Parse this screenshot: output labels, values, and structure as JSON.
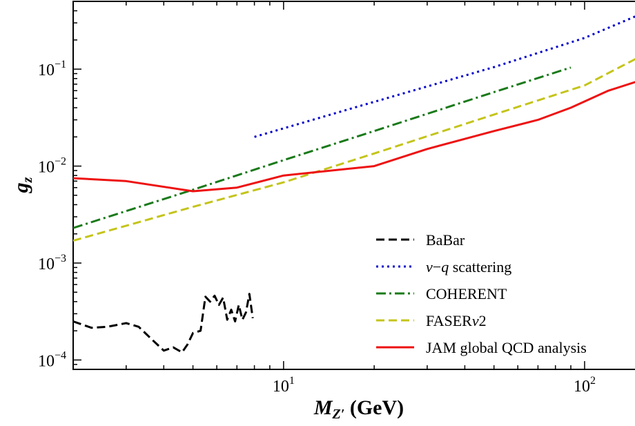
{
  "chart_data": {
    "type": "line",
    "xscale": "log",
    "yscale": "log",
    "xlim": [
      2,
      160
    ],
    "ylim": [
      8e-05,
      0.5
    ],
    "xlabel": {
      "main": "M",
      "sub": "Z′",
      "unit": " (GeV)"
    },
    "ylabel": {
      "main": "g",
      "sub": "z"
    },
    "grid": false,
    "legend_position": "lower-right",
    "x_ticks": [
      {
        "value": 10,
        "base": "10",
        "exp": "1"
      },
      {
        "value": 100,
        "base": "10",
        "exp": "2"
      }
    ],
    "y_ticks": [
      {
        "value": 0.0001,
        "base": "10",
        "exp": "−4"
      },
      {
        "value": 0.001,
        "base": "10",
        "exp": "−3"
      },
      {
        "value": 0.01,
        "base": "10",
        "exp": "−2"
      },
      {
        "value": 0.1,
        "base": "10",
        "exp": "−1"
      }
    ],
    "series": [
      {
        "name": "BaBar",
        "legend_parts": [
          "BaBar"
        ],
        "color": "#000000",
        "dash": "12 6",
        "x": [
          2.0,
          2.3,
          2.6,
          3.0,
          3.3,
          3.6,
          4.0,
          4.3,
          4.6,
          4.8,
          5.0,
          5.3,
          5.5,
          5.7,
          5.9,
          6.1,
          6.3,
          6.5,
          6.7,
          6.9,
          7.1,
          7.3,
          7.5,
          7.7,
          7.9
        ],
        "y": [
          0.00025,
          0.000215,
          0.00022,
          0.00024,
          0.00022,
          0.00017,
          0.000125,
          0.000135,
          0.00012,
          0.000145,
          0.00019,
          0.0002,
          0.00045,
          0.0004,
          0.00046,
          0.00037,
          0.00044,
          0.00026,
          0.00033,
          0.00025,
          0.00037,
          0.00026,
          0.00031,
          0.00048,
          0.00027
        ]
      },
      {
        "name": "ν−q scattering",
        "legend_parts": [
          "ν",
          "−",
          "q",
          " scattering"
        ],
        "color": "#0000cc",
        "dash": "3 5",
        "x": [
          8,
          20,
          50,
          100,
          160
        ],
        "y": [
          0.02,
          0.046,
          0.105,
          0.21,
          0.39
        ]
      },
      {
        "name": "COHERENT",
        "legend_parts": [
          "COHERENT"
        ],
        "color": "#1a7a1a",
        "dash": "14 5 3 5",
        "x": [
          2,
          5,
          10,
          20,
          50,
          90
        ],
        "y": [
          0.0023,
          0.0057,
          0.0115,
          0.023,
          0.058,
          0.104
        ]
      },
      {
        "name": "FASERν2",
        "legend_parts": [
          "FASER",
          "ν",
          "2"
        ],
        "color": "#c4c41a",
        "dash": "12 6",
        "x": [
          2,
          5,
          10,
          20,
          50,
          100,
          160
        ],
        "y": [
          0.0017,
          0.0038,
          0.0068,
          0.0135,
          0.034,
          0.068,
          0.145
        ]
      },
      {
        "name": "JAM global QCD analysis",
        "legend_parts": [
          "JAM global QCD analysis"
        ],
        "color": "#ee1111",
        "dash": "",
        "x": [
          2,
          3,
          5,
          7,
          10,
          20,
          30,
          50,
          70,
          90,
          120,
          160
        ],
        "y": [
          0.0075,
          0.007,
          0.0055,
          0.006,
          0.008,
          0.01,
          0.015,
          0.023,
          0.03,
          0.04,
          0.06,
          0.08
        ]
      }
    ]
  }
}
